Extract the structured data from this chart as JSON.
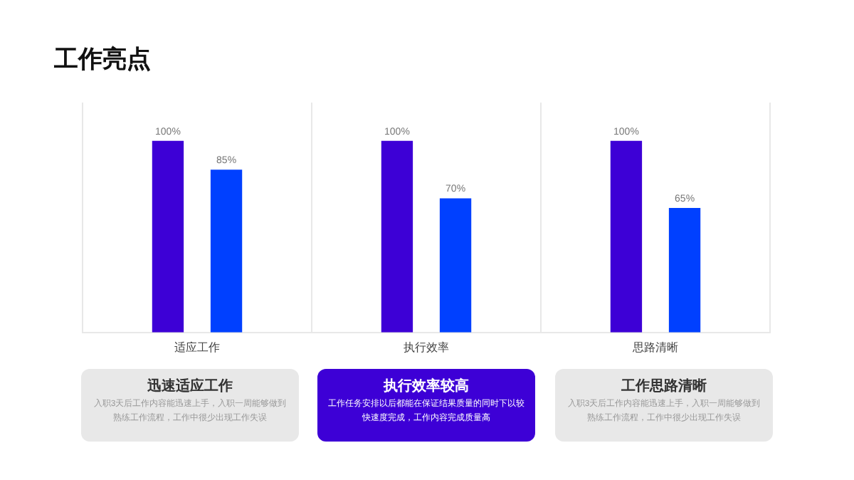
{
  "chart_data": {
    "type": "bar",
    "title": "工作亮点",
    "categories": [
      "适应工作",
      "执行效率",
      "思路清晰"
    ],
    "series": [
      {
        "color": "#3d00d6",
        "values": [
          100,
          100,
          100
        ],
        "value_labels": [
          "100%",
          "100%",
          "100%"
        ]
      },
      {
        "color": "#0040ff",
        "values": [
          85,
          70,
          65
        ],
        "value_labels": [
          "85%",
          "70%",
          "65%"
        ]
      }
    ],
    "ylim": [
      0,
      120
    ],
    "grid": "x",
    "tick_labels": "x",
    "legend": false,
    "annotations": [
      "迅速适应工作",
      "入职3天后工作内容能迅速上手，入职一周能够做到熟练工作流程，工作中很少出现工作失误",
      "执行效率较高",
      "工作任务安排以后都能在保证结果质量的同时下以较快速度完成，工作内容完成质量高",
      "工作思路清晰",
      "入职3天后工作内容能迅速上手，入职一周能够做到熟练工作流程，工作中很少出现工作失误"
    ]
  }
}
